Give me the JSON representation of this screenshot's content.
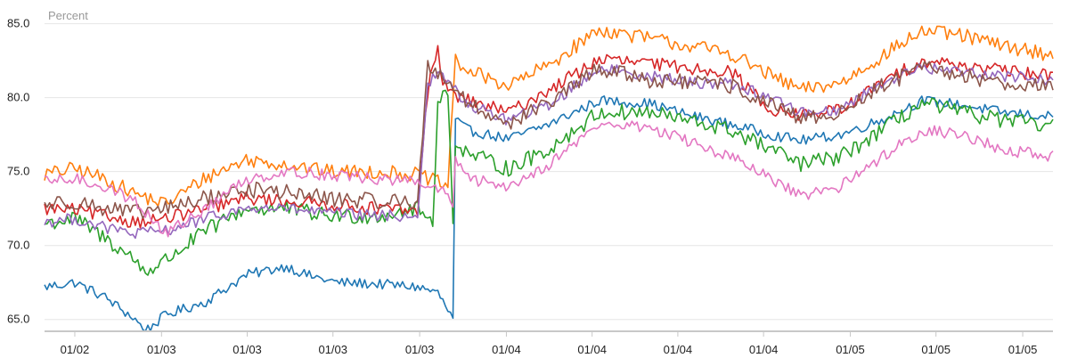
{
  "chart_data": {
    "type": "line",
    "title": "",
    "xlabel": "",
    "ylabel": "Percent",
    "ylim": [
      64.2,
      86.0
    ],
    "xlim": [
      0,
      1
    ],
    "grid": true,
    "legend": "none",
    "y_ticks": [
      "85.0",
      "80.0",
      "75.0",
      "70.0",
      "65.0"
    ],
    "y_tick_values": [
      85,
      80,
      75,
      70,
      65
    ],
    "x_ticks": [
      "01/02",
      "01/03",
      "01/03",
      "01/03",
      "01/03",
      "01/04",
      "01/04",
      "01/04",
      "01/04",
      "01/05",
      "01/05",
      "01/05"
    ],
    "x_tick_positions": [
      0.03,
      0.116,
      0.201,
      0.286,
      0.372,
      0.458,
      0.543,
      0.628,
      0.713,
      0.799,
      0.884,
      0.97
    ],
    "series": [
      {
        "color": "#1f77b4",
        "x": [
          0,
          0.03,
          0.06,
          0.09,
          0.1,
          0.12,
          0.16,
          0.2,
          0.24,
          0.26,
          0.29,
          0.33,
          0.37,
          0.39,
          0.405,
          0.407,
          0.42,
          0.46,
          0.5,
          0.55,
          0.6,
          0.64,
          0.68,
          0.72,
          0.75,
          0.79,
          0.83,
          0.87,
          0.91,
          0.95,
          1.0
        ],
        "y": [
          67.2,
          67.5,
          66.5,
          65.0,
          64.2,
          65.3,
          66.2,
          68.0,
          68.6,
          68.0,
          67.5,
          67.4,
          67.2,
          66.8,
          65.0,
          78.5,
          77.8,
          77.2,
          78.2,
          79.8,
          79.6,
          78.8,
          78.2,
          77.5,
          77.1,
          77.5,
          78.5,
          79.8,
          79.5,
          79.0,
          78.7
        ],
        "noise": 0.35
      },
      {
        "color": "#ff7f0e",
        "x": [
          0,
          0.03,
          0.06,
          0.09,
          0.12,
          0.16,
          0.2,
          0.24,
          0.28,
          0.33,
          0.37,
          0.4,
          0.407,
          0.42,
          0.46,
          0.5,
          0.55,
          0.6,
          0.64,
          0.68,
          0.72,
          0.75,
          0.79,
          0.83,
          0.87,
          0.91,
          0.95,
          1.0
        ],
        "y": [
          74.8,
          75.2,
          74.5,
          73.5,
          72.8,
          74.6,
          75.8,
          75.5,
          75.0,
          75.0,
          74.8,
          74.0,
          82.5,
          81.8,
          80.8,
          82.2,
          84.6,
          84.0,
          83.5,
          83.0,
          81.5,
          80.5,
          81.0,
          82.8,
          84.5,
          84.2,
          83.5,
          82.9
        ],
        "noise": 0.5
      },
      {
        "color": "#2ca02c",
        "x": [
          0,
          0.03,
          0.06,
          0.09,
          0.1,
          0.12,
          0.16,
          0.2,
          0.24,
          0.28,
          0.33,
          0.37,
          0.385,
          0.39,
          0.4,
          0.405,
          0.407,
          0.42,
          0.46,
          0.5,
          0.55,
          0.6,
          0.64,
          0.68,
          0.72,
          0.75,
          0.79,
          0.83,
          0.87,
          0.91,
          0.95,
          1.0
        ],
        "y": [
          71.5,
          71.8,
          70.5,
          69.0,
          68.2,
          69.0,
          71.0,
          72.5,
          72.5,
          72.0,
          72.0,
          72.5,
          71.5,
          80.0,
          80.2,
          72.0,
          77.0,
          76.2,
          75.2,
          76.5,
          79.0,
          79.0,
          78.4,
          77.8,
          76.5,
          75.5,
          76.0,
          77.8,
          79.6,
          79.0,
          78.5,
          78.0
        ],
        "noise": 0.55
      },
      {
        "color": "#d62728",
        "x": [
          0,
          0.03,
          0.06,
          0.09,
          0.12,
          0.16,
          0.2,
          0.24,
          0.28,
          0.33,
          0.37,
          0.38,
          0.39,
          0.395,
          0.4,
          0.407,
          0.42,
          0.46,
          0.5,
          0.55,
          0.6,
          0.64,
          0.68,
          0.72,
          0.75,
          0.79,
          0.83,
          0.87,
          0.91,
          0.95,
          1.0
        ],
        "y": [
          72.5,
          72.4,
          72.0,
          71.6,
          71.8,
          72.5,
          73.2,
          73.0,
          72.8,
          72.5,
          72.3,
          80.5,
          83.5,
          81.0,
          80.5,
          80.2,
          79.8,
          79.0,
          80.5,
          82.6,
          82.3,
          82.0,
          81.8,
          79.2,
          78.8,
          79.2,
          81.0,
          82.5,
          82.2,
          81.8,
          81.5
        ],
        "noise": 0.45
      },
      {
        "color": "#9467bd",
        "x": [
          0,
          0.03,
          0.06,
          0.09,
          0.12,
          0.16,
          0.2,
          0.24,
          0.28,
          0.33,
          0.37,
          0.38,
          0.39,
          0.4,
          0.407,
          0.42,
          0.46,
          0.5,
          0.55,
          0.6,
          0.64,
          0.68,
          0.72,
          0.75,
          0.79,
          0.83,
          0.87,
          0.91,
          0.95,
          1.0
        ],
        "y": [
          71.6,
          71.8,
          71.2,
          70.8,
          71.0,
          71.8,
          72.5,
          72.5,
          72.2,
          72.0,
          72.0,
          81.0,
          81.5,
          81.2,
          80.5,
          79.5,
          78.5,
          79.5,
          82.0,
          81.5,
          81.0,
          81.0,
          80.0,
          79.0,
          79.2,
          81.0,
          82.0,
          81.8,
          81.5,
          81.2
        ],
        "noise": 0.4
      },
      {
        "color": "#8c564b",
        "x": [
          0,
          0.03,
          0.06,
          0.09,
          0.12,
          0.16,
          0.2,
          0.24,
          0.28,
          0.33,
          0.37,
          0.38,
          0.39,
          0.4,
          0.407,
          0.42,
          0.46,
          0.5,
          0.55,
          0.6,
          0.64,
          0.68,
          0.72,
          0.75,
          0.79,
          0.83,
          0.87,
          0.91,
          0.95,
          1.0
        ],
        "y": [
          72.8,
          73.0,
          72.5,
          72.2,
          72.5,
          73.2,
          73.8,
          73.6,
          73.2,
          73.0,
          73.0,
          82.0,
          81.8,
          81.0,
          80.8,
          79.5,
          78.3,
          79.6,
          82.0,
          81.2,
          81.0,
          80.8,
          79.5,
          78.5,
          79.0,
          80.8,
          82.0,
          81.5,
          81.0,
          80.8
        ],
        "noise": 0.55
      },
      {
        "color": "#e377c2",
        "x": [
          0,
          0.03,
          0.06,
          0.09,
          0.12,
          0.16,
          0.2,
          0.24,
          0.28,
          0.33,
          0.37,
          0.4,
          0.405,
          0.407,
          0.42,
          0.46,
          0.5,
          0.55,
          0.6,
          0.64,
          0.68,
          0.72,
          0.75,
          0.79,
          0.83,
          0.87,
          0.91,
          0.95,
          1.0
        ],
        "y": [
          74.3,
          74.5,
          74.0,
          73.0,
          70.8,
          72.5,
          74.5,
          75.0,
          74.8,
          74.5,
          74.3,
          73.5,
          72.3,
          76.0,
          74.5,
          74.0,
          75.5,
          78.2,
          78.0,
          77.0,
          76.0,
          74.5,
          73.3,
          74.0,
          76.0,
          77.8,
          77.5,
          76.5,
          76.0
        ],
        "noise": 0.4
      }
    ]
  }
}
